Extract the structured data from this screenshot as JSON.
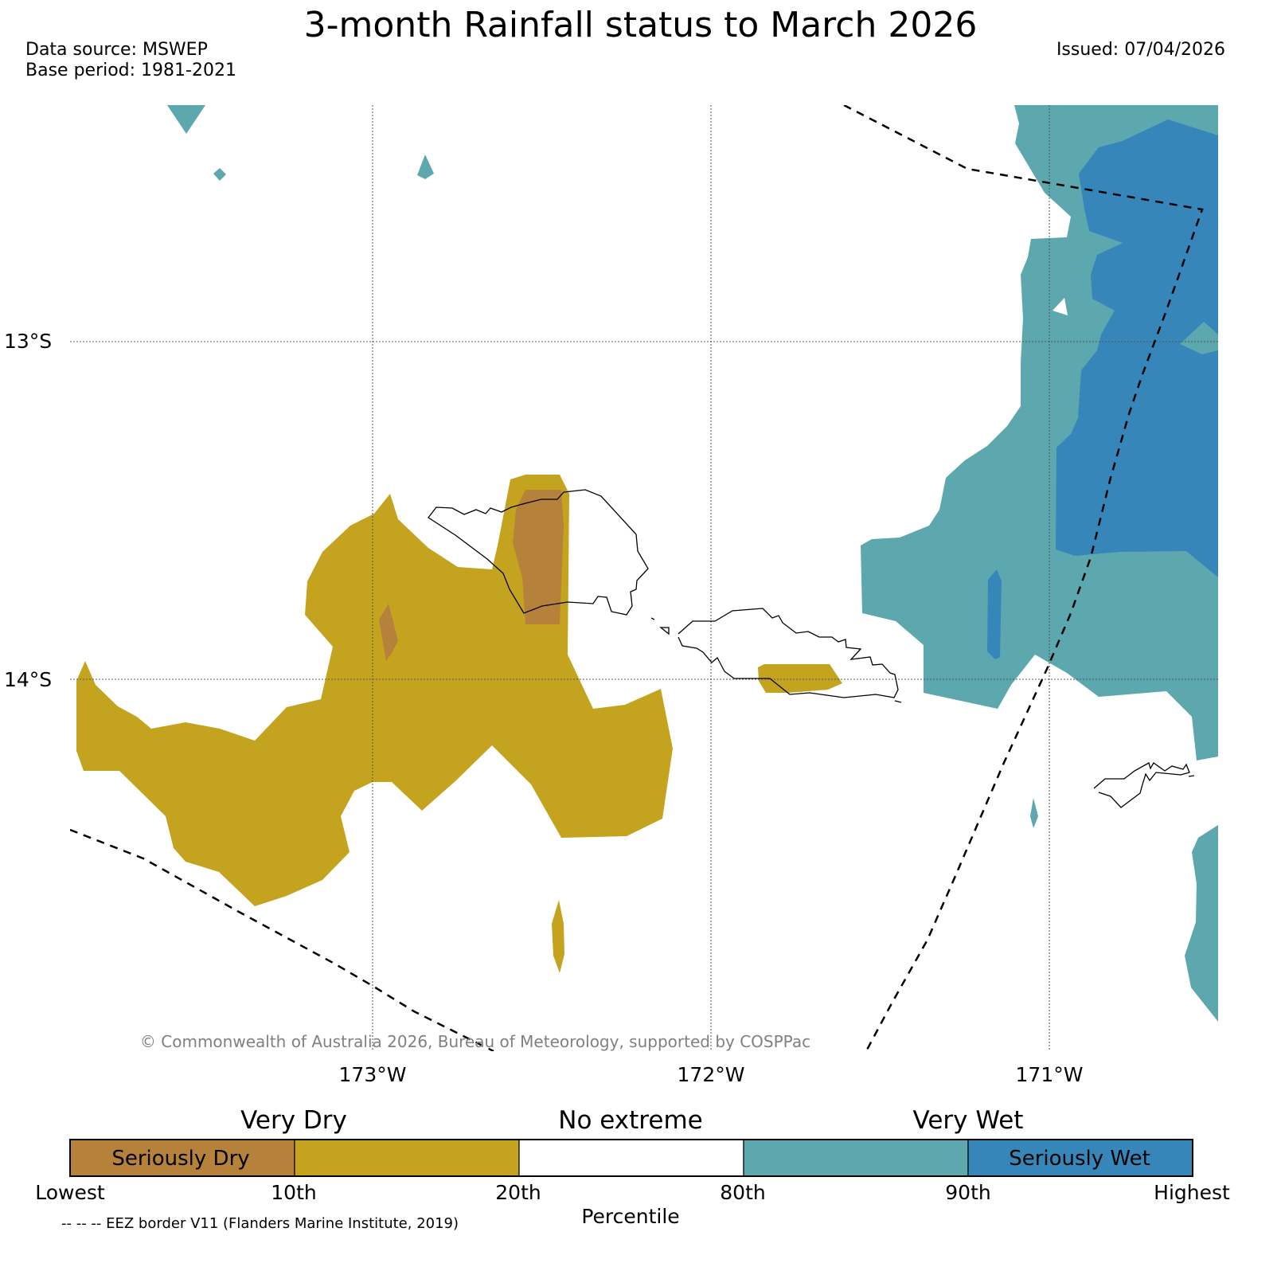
{
  "title": "3-month Rainfall status to March 2026",
  "data_source": "Data source: MSWEP",
  "base_period": "Base period: 1981-2021",
  "issued": "Issued: 07/04/2026",
  "copyright": "© Commonwealth of Australia 2026, Bureau of Meteorology, supported by COSPPac",
  "eez_note": "-- -- -- EEZ border V11 (Flanders Marine Institute, 2019)",
  "map": {
    "lat_labels": [
      "13°S",
      "14°S"
    ],
    "lon_labels": [
      "173°W",
      "172°W",
      "171°W"
    ]
  },
  "legend": {
    "group_labels": [
      "Very Dry",
      "No extreme",
      "Very Wet"
    ],
    "bins": [
      {
        "label": "Seriously Dry",
        "color": "#b5813b"
      },
      {
        "label": "",
        "color": "#c4a41f"
      },
      {
        "label": "",
        "color": "#ffffff"
      },
      {
        "label": "",
        "color": "#5ca8ae"
      },
      {
        "label": "Seriously Wet",
        "color": "#3686b9"
      }
    ],
    "ticks": [
      "Lowest",
      "10th",
      "20th",
      "80th",
      "90th",
      "Highest"
    ],
    "axis_label": "Percentile"
  }
}
